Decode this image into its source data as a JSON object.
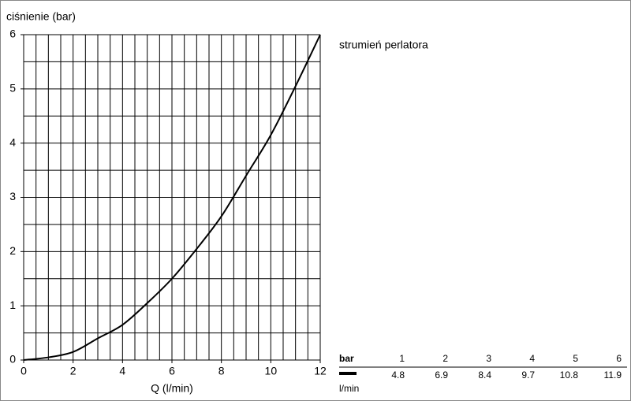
{
  "chart_data": {
    "type": "line",
    "y_label": "ciśnienie (bar)",
    "x_label": "Q (l/min)",
    "x": [
      0,
      1,
      2,
      3,
      4,
      5,
      6,
      7,
      8,
      9,
      10,
      11,
      12
    ],
    "series": [
      {
        "name": "strumień perlatora",
        "color": "#000000",
        "values": [
          0,
          0.05,
          0.15,
          0.4,
          0.65,
          1.05,
          1.5,
          2.05,
          2.65,
          3.4,
          4.15,
          5.05,
          6
        ]
      }
    ],
    "xlim": [
      0,
      12
    ],
    "xticks": [
      0,
      2,
      4,
      6,
      8,
      10,
      12
    ],
    "ylim": [
      0,
      6
    ],
    "yticks": [
      0,
      1,
      2,
      3,
      4,
      5,
      6
    ],
    "grid": true,
    "minor_grid": {
      "x": 0.5,
      "y": 0.5
    }
  },
  "table": {
    "header": "bar",
    "pressures": [
      1,
      2,
      3,
      4,
      5,
      6
    ],
    "unit": "l/min",
    "flows": [
      4.8,
      6.9,
      8.4,
      9.7,
      10.8,
      11.9
    ]
  }
}
